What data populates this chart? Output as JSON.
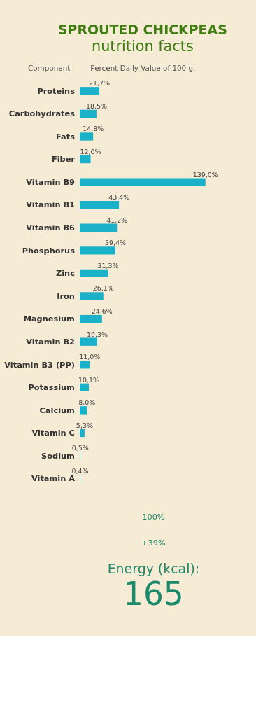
{
  "chart_data": {
    "type": "bar",
    "orientation": "horizontal",
    "title": "SPROUTED CHICKPEAS",
    "subtitle": "nutrition facts",
    "ylabel": "Component",
    "xlabel": "Percent Daily Value of 100 g.",
    "categories": [
      "Proteins",
      "Carbohydrates",
      "Fats",
      "Fiber",
      "Vitamin B9",
      "Vitamin B1",
      "Vitamin B6",
      "Phosphorus",
      "Zinc",
      "Iron",
      "Magnesium",
      "Vitamin B2",
      "Vitamin B3 (PP)",
      "Potassium",
      "Calcium",
      "Vitamin C",
      "Sodium",
      "Vitamin A"
    ],
    "series": [
      {
        "color": "#1bb1c9",
        "values": [
          21.7,
          18.5,
          14.8,
          12.0,
          139.0,
          43.4,
          41.2,
          39.4,
          31.3,
          26.1,
          24.6,
          19.3,
          11.0,
          10.1,
          8.0,
          5.3,
          0.5,
          0.4
        ],
        "value_labels": [
          "21,7%",
          "18,5%",
          "14,8%",
          "12,0%",
          "139,0%",
          "43,4%",
          "41,2%",
          "39,4%",
          "31,3%",
          "26,1%",
          "24,6%",
          "19,3%",
          "11,0%",
          "10,1%",
          "8,0%",
          "5,3%",
          "0,5%",
          "0,4%"
        ]
      }
    ],
    "tick_labels": "y",
    "grid": false,
    "annotations": [
      "100%",
      "+39%",
      "Energy (kcal):",
      "165"
    ]
  }
}
